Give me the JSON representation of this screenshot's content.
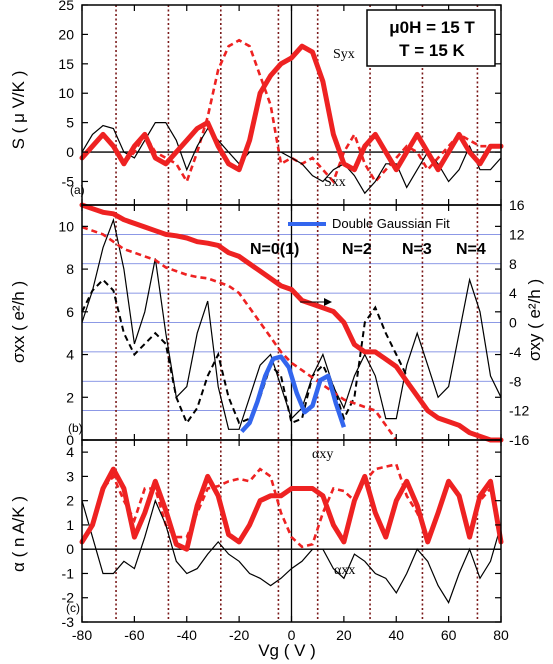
{
  "chart_data": [
    {
      "type": "line",
      "panel_label": "(a)",
      "ylabel": "S ( μ V/K )",
      "xlim": [
        -80,
        80
      ],
      "ylim": [
        -9,
        25
      ],
      "yticks": [
        -5,
        0,
        5,
        10,
        15,
        20,
        25
      ],
      "info_box": {
        "line1": "μ0H = 15 T",
        "line2": "T = 15 K"
      },
      "annotations": {
        "syx": "Syx",
        "sxx": "Sxx"
      },
      "series": [
        {
          "name": "Syx",
          "color": "#ee2222",
          "style": "solid-thick",
          "x": [
            -80,
            -76,
            -72,
            -68,
            -64,
            -60,
            -56,
            -52,
            -48,
            -44,
            -40,
            -36,
            -32,
            -28,
            -24,
            -20,
            -16,
            -12,
            -8,
            -4,
            0,
            4,
            8,
            12,
            16,
            20,
            24,
            28,
            32,
            36,
            40,
            44,
            48,
            52,
            56,
            60,
            64,
            68,
            72,
            76,
            80
          ],
          "y": [
            -1,
            1,
            3,
            1,
            -2,
            1,
            3,
            -1,
            -2,
            0,
            2,
            4,
            5,
            1,
            -2,
            -3,
            2,
            10,
            13,
            15,
            16,
            18,
            17,
            12,
            3,
            -2,
            -3,
            1,
            3,
            0,
            -3,
            0,
            3,
            0,
            -3,
            0,
            3,
            0,
            -2,
            1,
            1
          ]
        },
        {
          "name": "Syx (dashed)",
          "color": "#ee2222",
          "style": "dashed",
          "x": [
            -80,
            -76,
            -72,
            -68,
            -64,
            -60,
            -56,
            -52,
            -48,
            -44,
            -40,
            -36,
            -32,
            -28,
            -24,
            -20,
            -16,
            -12,
            -8,
            -4,
            0,
            4,
            8,
            12,
            16,
            20,
            24,
            28,
            32,
            36,
            40,
            44,
            48,
            52,
            56,
            60,
            64,
            68,
            72,
            76,
            80
          ],
          "y": [
            -1,
            1,
            3,
            1,
            -2,
            0,
            3,
            0,
            -1,
            -2,
            -5,
            0,
            6,
            14,
            18,
            19,
            18,
            13,
            8,
            -2,
            -1,
            -2,
            -1,
            -3,
            -5,
            0,
            3,
            -2,
            -5,
            -3,
            -1,
            1,
            0,
            -3,
            -1,
            1,
            3,
            2,
            1,
            1,
            1
          ]
        },
        {
          "name": "Sxx",
          "color": "#000000",
          "style": "solid-thin",
          "x": [
            -80,
            -76,
            -72,
            -68,
            -64,
            -60,
            -56,
            -52,
            -48,
            -44,
            -40,
            -36,
            -32,
            -28,
            -24,
            -20,
            -16,
            -12,
            -8,
            -4,
            0,
            4,
            8,
            12,
            16,
            20,
            24,
            28,
            32,
            36,
            40,
            44,
            48,
            52,
            56,
            60,
            64,
            68,
            72,
            76,
            80
          ],
          "y": [
            0,
            3,
            4.5,
            4,
            0,
            -1,
            2,
            5,
            5,
            2,
            -3,
            1,
            4,
            2,
            0,
            -2,
            0,
            0,
            0,
            0,
            -1,
            -2,
            -4,
            -5,
            -3,
            -2,
            -4,
            -7,
            -5,
            -2,
            -2,
            -6,
            -3,
            0,
            -2,
            -5,
            -3,
            1,
            -3,
            -3,
            -1
          ]
        }
      ]
    },
    {
      "type": "line",
      "panel_label": "(b)",
      "ylabel": "σxx ( e²/h )",
      "ylabel_right": "σxy ( e²/h )",
      "xlim": [
        -80,
        80
      ],
      "ylim": [
        0,
        11
      ],
      "yticks": [
        0,
        2,
        4,
        6,
        8,
        10
      ],
      "ylim_right": [
        -16,
        16
      ],
      "yticks_right": [
        -16,
        -12,
        -8,
        -4,
        0,
        4,
        8,
        12,
        16
      ],
      "legend": {
        "label": "Double Gaussian Fit",
        "position": "top-right"
      },
      "landau_levels": [
        "N=0(1)",
        "N=2",
        "N=3",
        "N=4"
      ],
      "series": [
        {
          "name": "σxx",
          "color": "#000000",
          "style": "solid-thin",
          "x": [
            -80,
            -76,
            -72,
            -68,
            -64,
            -60,
            -56,
            -52,
            -48,
            -44,
            -40,
            -36,
            -32,
            -28,
            -24,
            -20,
            -16,
            -12,
            -8,
            -4,
            0,
            4,
            8,
            12,
            16,
            20,
            24,
            28,
            32,
            36,
            40,
            44,
            48,
            52,
            56,
            60,
            64,
            68,
            72,
            76,
            80
          ],
          "y": [
            5.5,
            7,
            9,
            10.3,
            8,
            4.5,
            6,
            8.5,
            5,
            2,
            2.5,
            5,
            6.5,
            2.5,
            0.5,
            0.5,
            2,
            3.5,
            4,
            2.5,
            1,
            1.5,
            3,
            4,
            2.5,
            1.5,
            3,
            4,
            3,
            1,
            1,
            3.5,
            5,
            3.5,
            2,
            2.5,
            5,
            7.5,
            6,
            3,
            2
          ]
        },
        {
          "name": "σxx (dashed)",
          "color": "#000000",
          "style": "dashed",
          "x": [
            -80,
            -76,
            -72,
            -68,
            -64,
            -60,
            -56,
            -52,
            -48,
            -44,
            -40,
            -36,
            -32,
            -28,
            -24,
            -20,
            -16,
            -12,
            -8,
            -4,
            0,
            4,
            8,
            12,
            16,
            20,
            24,
            28,
            32,
            36,
            40,
            44
          ],
          "y": [
            6,
            7,
            7.5,
            7,
            5,
            4,
            4.5,
            5,
            4.5,
            2,
            0.8,
            1.5,
            3,
            4,
            2,
            0.8,
            1,
            2,
            3.5,
            3,
            0.8,
            1,
            3,
            3.5,
            2.5,
            1,
            2,
            5.5,
            6.2,
            5,
            4,
            3
          ]
        },
        {
          "name": "Double Gaussian Fit",
          "color": "#3366ee",
          "style": "fit",
          "x": [
            -19,
            -16,
            -13,
            -10,
            -7,
            -4,
            -1,
            2,
            5,
            8,
            11,
            14,
            17,
            20
          ],
          "y": [
            0.4,
            0.8,
            1.8,
            3.0,
            3.8,
            3.9,
            3.4,
            2.2,
            1.3,
            1.6,
            2.8,
            3.0,
            1.7,
            0.6
          ]
        },
        {
          "name": "σxy",
          "axis": "right",
          "color": "#ee2222",
          "style": "solid-thick",
          "x": [
            -80,
            -76,
            -72,
            -68,
            -64,
            -60,
            -56,
            -52,
            -48,
            -44,
            -40,
            -36,
            -32,
            -28,
            -24,
            -20,
            -16,
            -12,
            -8,
            -4,
            0,
            4,
            8,
            12,
            16,
            20,
            24,
            28,
            32,
            36,
            40,
            44,
            48,
            52,
            56,
            60,
            64,
            68,
            72,
            76,
            80
          ],
          "y": [
            16,
            15.5,
            15,
            14.8,
            14,
            13.5,
            13,
            12.5,
            12,
            11.8,
            11.5,
            11,
            10.8,
            10.5,
            9.5,
            9,
            8,
            7,
            6,
            5,
            4.5,
            3,
            2.5,
            2,
            1.5,
            0,
            -3,
            -4,
            -4,
            -5,
            -6,
            -8,
            -10,
            -12,
            -13,
            -13.5,
            -14,
            -15,
            -15.5,
            -16,
            -16
          ]
        },
        {
          "name": "σxy (dashed)",
          "axis": "right",
          "color": "#ee2222",
          "style": "dashed",
          "x": [
            -80,
            -76,
            -72,
            -68,
            -64,
            -60,
            -56,
            -52,
            -48,
            -44,
            -40,
            -36,
            -32,
            -28,
            -24,
            -20,
            -16,
            -12,
            -8,
            -4,
            0,
            4,
            8,
            12,
            16,
            20,
            24,
            28,
            32,
            36,
            40
          ],
          "y": [
            13,
            12.5,
            12,
            11,
            10,
            9.5,
            9,
            8.5,
            7.5,
            7,
            6.5,
            6.2,
            6,
            5.5,
            5,
            4,
            2,
            0,
            -2,
            -4,
            -5.5,
            -6.5,
            -7.5,
            -8.5,
            -9.5,
            -10.5,
            -11,
            -11.5,
            -12,
            -14,
            -16
          ]
        }
      ]
    },
    {
      "type": "line",
      "panel_label": "(c)",
      "ylabel": "α ( n A/K )",
      "xlabel": "Vg ( V )",
      "xlim": [
        -80,
        80
      ],
      "xticks": [
        -80,
        -60,
        -40,
        -20,
        0,
        20,
        40,
        60,
        80
      ],
      "ylim": [
        -3,
        4.5
      ],
      "yticks": [
        -3,
        -2,
        -1,
        0,
        1,
        2,
        3,
        4
      ],
      "annotations": {
        "axy": "αxy",
        "axx": "αxx"
      },
      "series": [
        {
          "name": "αxy",
          "color": "#ee2222",
          "style": "solid-thick",
          "x": [
            -80,
            -76,
            -72,
            -68,
            -64,
            -60,
            -56,
            -52,
            -48,
            -44,
            -40,
            -36,
            -32,
            -28,
            -24,
            -20,
            -16,
            -12,
            -8,
            -4,
            0,
            4,
            8,
            12,
            16,
            20,
            24,
            28,
            32,
            36,
            40,
            44,
            48,
            52,
            56,
            60,
            64,
            68,
            72,
            76,
            80
          ],
          "y": [
            0.3,
            1,
            2.5,
            3.3,
            2.5,
            0.5,
            1.5,
            2.8,
            1.6,
            0.2,
            0,
            1.8,
            3,
            2.2,
            0.6,
            0.3,
            1,
            2,
            2.2,
            2.2,
            2.5,
            2.5,
            2.5,
            2.2,
            1,
            0.3,
            2,
            3,
            1.5,
            0.5,
            2,
            2.8,
            1.8,
            0.3,
            1.5,
            2.8,
            2.2,
            0.5,
            2.2,
            2.8,
            0.3
          ]
        },
        {
          "name": "αxy (dashed)",
          "color": "#ee2222",
          "style": "dashed",
          "x": [
            -80,
            -76,
            -72,
            -68,
            -64,
            -60,
            -56,
            -52,
            -48,
            -44,
            -40,
            -36,
            -32,
            -28,
            -24,
            -20,
            -16,
            -12,
            -8,
            -4,
            0,
            4,
            8,
            12,
            16,
            20,
            24,
            28,
            32,
            36,
            40,
            44,
            48,
            52,
            56,
            60,
            64,
            68,
            72,
            76,
            80
          ],
          "y": [
            0.3,
            1,
            2.5,
            3,
            2,
            1.2,
            2.5,
            2.5,
            1,
            0.5,
            0.5,
            1.5,
            2.5,
            2.6,
            2.8,
            2.9,
            2.8,
            3.3,
            3,
            1.5,
            0.5,
            0.1,
            0.2,
            1.5,
            2.5,
            2.4,
            2,
            2.8,
            3.3,
            3.4,
            3.5,
            2.2,
            1.5,
            0.5,
            1.5,
            2.8,
            2.2,
            0.5,
            2,
            2.5,
            0.5
          ]
        },
        {
          "name": "αxx",
          "color": "#000000",
          "style": "solid-thin",
          "x": [
            -80,
            -76,
            -72,
            -68,
            -64,
            -60,
            -56,
            -52,
            -48,
            -44,
            -40,
            -36,
            -32,
            -28,
            -24,
            -20,
            -16,
            -12,
            -8,
            -4,
            0,
            4,
            8,
            12,
            16,
            20,
            24,
            28,
            32,
            36,
            40,
            44,
            48,
            52,
            56,
            60,
            64,
            68,
            72,
            76,
            80
          ],
          "y": [
            2,
            0.5,
            -1,
            -1,
            -0.5,
            -0.8,
            0.5,
            2,
            1,
            -0.5,
            -1,
            -0.8,
            -0.2,
            0.3,
            -0.2,
            -0.5,
            -1,
            -1.2,
            -1.5,
            -1.2,
            -0.8,
            -0.5,
            0,
            0,
            -0.8,
            -1.2,
            -0.2,
            -0.5,
            -1,
            -1.2,
            -1.8,
            -1,
            0,
            -0.5,
            -1.5,
            -2.2,
            -1,
            0,
            -1.2,
            -0.5,
            1
          ]
        }
      ]
    }
  ],
  "vertical_dotted_lines_x": [
    -67,
    -47,
    -27,
    -5,
    10,
    30,
    50,
    71
  ],
  "colors": {
    "red": "#ee2222",
    "black": "#000000",
    "blue_fit": "#3366ee",
    "grid_blue": "#6677dd",
    "dotted": "#7a1a1a"
  }
}
